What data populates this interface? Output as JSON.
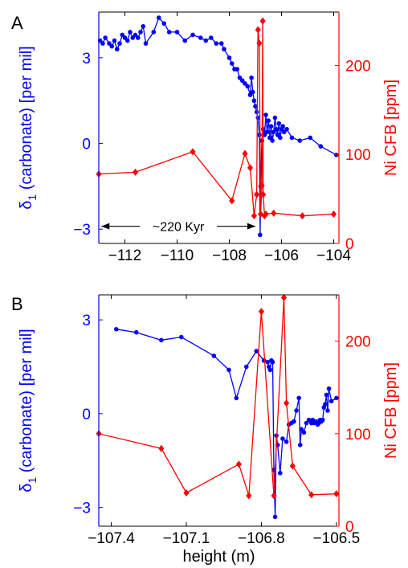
{
  "colors": {
    "left_axis": "#0000ff",
    "right_axis": "#ff0000",
    "frame": "#000000"
  },
  "chart_data": [
    {
      "type": "line",
      "panel_label": "A",
      "xlabel": "",
      "ylabel_left": {
        "prefix": "δ",
        "subscript": "1",
        "suffix": " (carbonate) [per mil]"
      },
      "ylabel_right": "Ni CFB [ppm]",
      "xlim": [
        -113,
        -103.8
      ],
      "ylim_left": [
        -3.5,
        4.6
      ],
      "ylim_right": [
        0,
        260
      ],
      "xticks": [
        -112,
        -110,
        -108,
        -106,
        -104
      ],
      "xtick_labels": [
        "−112",
        "−110",
        "−108",
        "−106",
        "−104"
      ],
      "yticks_left": [
        -3,
        0,
        3
      ],
      "ytick_labels_left": [
        "−3",
        "0",
        "3"
      ],
      "yticks_right": [
        0,
        100,
        200
      ],
      "ytick_labels_right": [
        "0",
        "100",
        "200"
      ],
      "grid": false,
      "annotation": {
        "text": "~220 Kyr",
        "from_x": -112.9,
        "to_x": -107.0,
        "y": -2.9
      },
      "series": [
        {
          "axis": "left",
          "color": "#0000ff",
          "marker": "dot",
          "x": [
            -112.95,
            -112.85,
            -112.75,
            -112.6,
            -112.5,
            -112.4,
            -112.3,
            -112.2,
            -112.1,
            -112.0,
            -111.9,
            -111.8,
            -111.7,
            -111.6,
            -111.5,
            -111.4,
            -111.3,
            -111.2,
            -110.9,
            -110.7,
            -110.5,
            -110.3,
            -110.0,
            -109.7,
            -109.4,
            -109.1,
            -108.9,
            -108.7,
            -108.5,
            -108.3,
            -108.2,
            -108.0,
            -107.9,
            -107.8,
            -107.7,
            -107.6,
            -107.5,
            -107.4,
            -107.3,
            -107.2,
            -107.15,
            -107.1,
            -107.05,
            -107.0,
            -106.95,
            -106.9,
            -106.85,
            -106.82,
            -106.8,
            -106.78,
            -106.75,
            -106.7,
            -106.65,
            -106.6,
            -106.55,
            -106.5,
            -106.45,
            -106.4,
            -106.35,
            -106.3,
            -106.25,
            -106.2,
            -106.15,
            -106.1,
            -106.05,
            -106.0,
            -105.95,
            -105.9,
            -105.8,
            -105.6,
            -105.3,
            -104.9,
            -104.5,
            -103.9
          ],
          "y": [
            3.6,
            3.5,
            3.7,
            3.5,
            3.4,
            3.6,
            3.3,
            3.5,
            3.8,
            3.7,
            3.6,
            3.9,
            3.7,
            3.8,
            3.7,
            3.9,
            4.1,
            3.5,
            3.9,
            4.4,
            4.2,
            3.9,
            3.9,
            3.6,
            3.8,
            3.7,
            3.6,
            3.7,
            3.5,
            3.5,
            3.3,
            3.0,
            2.8,
            2.6,
            2.6,
            2.3,
            2.2,
            2.1,
            2.0,
            1.7,
            2.3,
            1.8,
            1.5,
            1.3,
            1.1,
            0.9,
            0.3,
            -3.2,
            -1.5,
            -0.8,
            0.1,
            0.5,
            0.3,
            1.0,
            0.4,
            0.8,
            0.2,
            0.6,
            0.1,
            0.4,
            0.9,
            0.5,
            0.3,
            0.7,
            0.2,
            0.5,
            0.6,
            0.4,
            0.5,
            0.2,
            0.1,
            0.2,
            -0.1,
            -0.4
          ]
        },
        {
          "axis": "right",
          "color": "#ff0000",
          "marker": "diamond",
          "x": [
            -113.0,
            -111.6,
            -109.4,
            -107.9,
            -107.4,
            -107.2,
            -107.05,
            -106.95,
            -106.9,
            -106.85,
            -106.8,
            -106.75,
            -106.72,
            -106.7,
            -106.65,
            -106.6,
            -106.3,
            -105.2,
            -104.0
          ],
          "y": [
            78,
            80,
            103,
            48,
            101,
            85,
            31,
            55,
            240,
            225,
            33,
            65,
            250,
            55,
            31,
            33,
            34,
            31,
            33
          ]
        }
      ]
    },
    {
      "type": "line",
      "panel_label": "B",
      "xlabel": "height (m)",
      "ylabel_left": {
        "prefix": "δ",
        "subscript": "1",
        "suffix": " (carbonate) [per mil]"
      },
      "ylabel_right": "Ni CFB [ppm]",
      "xlim": [
        -107.45,
        -106.49
      ],
      "ylim_left": [
        -3.6,
        3.8
      ],
      "ylim_right": [
        0,
        250
      ],
      "xticks": [
        -107.4,
        -107.1,
        -106.8,
        -106.5
      ],
      "xtick_labels": [
        "−107.4",
        "−107.1",
        "−106.8",
        "−106.5"
      ],
      "yticks_left": [
        -3,
        0,
        3
      ],
      "ytick_labels_left": [
        "−3",
        "0",
        "3"
      ],
      "yticks_right": [
        0,
        100,
        200
      ],
      "ytick_labels_right": [
        "0",
        "100",
        "200"
      ],
      "grid": false,
      "series": [
        {
          "axis": "left",
          "color": "#0000ff",
          "marker": "dot",
          "x": [
            -107.38,
            -107.3,
            -107.2,
            -107.12,
            -106.99,
            -106.93,
            -106.9,
            -106.86,
            -106.82,
            -106.79,
            -106.775,
            -106.77,
            -106.765,
            -106.76,
            -106.755,
            -106.75,
            -106.745,
            -106.74,
            -106.735,
            -106.725,
            -106.715,
            -106.7,
            -106.69,
            -106.68,
            -106.67,
            -106.66,
            -106.65,
            -106.645,
            -106.64,
            -106.63,
            -106.62,
            -106.61,
            -106.6,
            -106.595,
            -106.59,
            -106.58,
            -106.575,
            -106.57,
            -106.565,
            -106.56,
            -106.555,
            -106.55,
            -106.545,
            -106.54,
            -106.535,
            -106.53,
            -106.52,
            -106.5
          ],
          "y": [
            2.7,
            2.6,
            2.35,
            2.45,
            1.85,
            1.4,
            0.5,
            1.5,
            2.0,
            1.7,
            1.65,
            1.5,
            1.4,
            1.7,
            1.65,
            -1.8,
            -3.3,
            -0.7,
            -1.0,
            -1.9,
            -0.8,
            -0.9,
            -0.35,
            -0.3,
            -0.25,
            0.1,
            0.5,
            -1.0,
            -0.5,
            -0.6,
            -0.3,
            -0.2,
            -0.3,
            -0.2,
            -0.3,
            -0.25,
            -0.35,
            -0.3,
            -0.2,
            -0.25,
            -0.2,
            0.2,
            0.3,
            0.6,
            0.1,
            0.8,
            0.4,
            0.5
          ]
        },
        {
          "axis": "right",
          "color": "#ff0000",
          "marker": "diamond",
          "x": [
            -107.45,
            -107.2,
            -107.1,
            -106.89,
            -106.85,
            -106.8,
            -106.75,
            -106.71,
            -106.7,
            -106.675,
            -106.6,
            -106.5
          ],
          "y": [
            100,
            84,
            36,
            67,
            33,
            232,
            33,
            247,
            133,
            65,
            34,
            35
          ]
        }
      ]
    }
  ]
}
